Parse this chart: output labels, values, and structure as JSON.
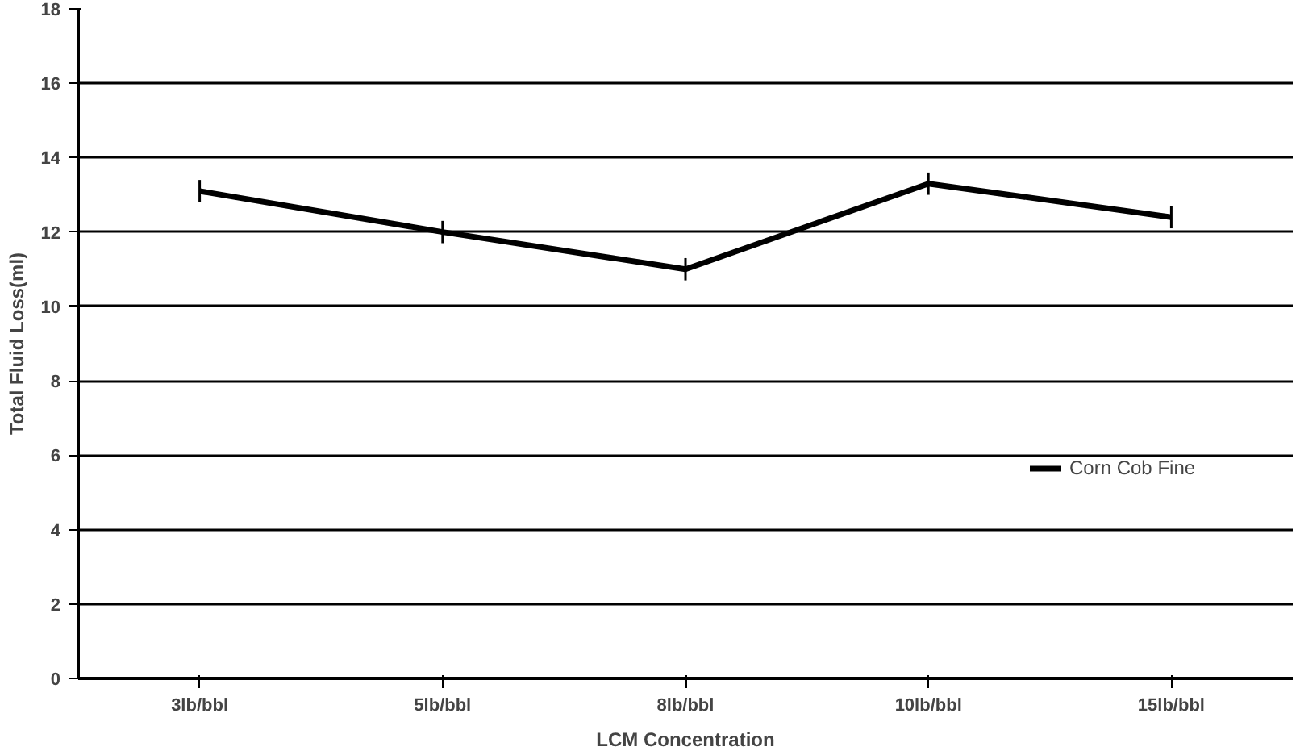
{
  "chart_data": {
    "type": "line",
    "xlabel": "LCM Concentration",
    "ylabel": "Total Fluid Loss(ml)",
    "categories": [
      "3lb/bbl",
      "5lb/bbl",
      "8lb/bbl",
      "10lb/bbl",
      "15lb/bbl"
    ],
    "series": [
      {
        "name": "Corn Cob Fine",
        "color": "#000000",
        "values": [
          13.1,
          12.0,
          11.0,
          13.3,
          12.4
        ],
        "errors": [
          0.3,
          0.3,
          0.3,
          0.3,
          0.3
        ]
      }
    ],
    "ylim": [
      0,
      18
    ],
    "yticks": [
      0,
      2,
      4,
      6,
      8,
      10,
      12,
      14,
      16,
      18
    ],
    "grid": "y",
    "legend": "right",
    "marker": "none",
    "line_style": "solid"
  }
}
